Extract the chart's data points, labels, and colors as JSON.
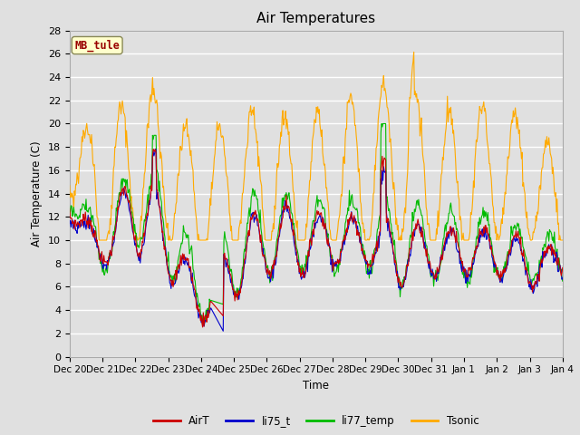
{
  "title": "Air Temperatures",
  "ylabel": "Air Temperature (C)",
  "xlabel": "Time",
  "ylim": [
    0,
    28
  ],
  "yticks": [
    0,
    2,
    4,
    6,
    8,
    10,
    12,
    14,
    16,
    18,
    20,
    22,
    24,
    26,
    28
  ],
  "xtick_labels": [
    "Dec 20",
    "Dec 21",
    "Dec 22",
    "Dec 23",
    "Dec 24",
    "Dec 25",
    "Dec 26",
    "Dec 27",
    "Dec 28",
    "Dec 29",
    "Dec 30",
    "Dec 31",
    "Jan 1",
    "Jan 2",
    "Jan 3",
    "Jan 4"
  ],
  "legend_labels": [
    "AirT",
    "li75_t",
    "li77_temp",
    "Tsonic"
  ],
  "legend_colors": [
    "#cc0000",
    "#0000cc",
    "#00bb00",
    "#ffaa00"
  ],
  "site_label": "MB_tule",
  "bg_color": "#e0e0e0",
  "plot_bg_color": "#e0e0e0",
  "grid_color": "#ffffff",
  "line_width": 0.8
}
